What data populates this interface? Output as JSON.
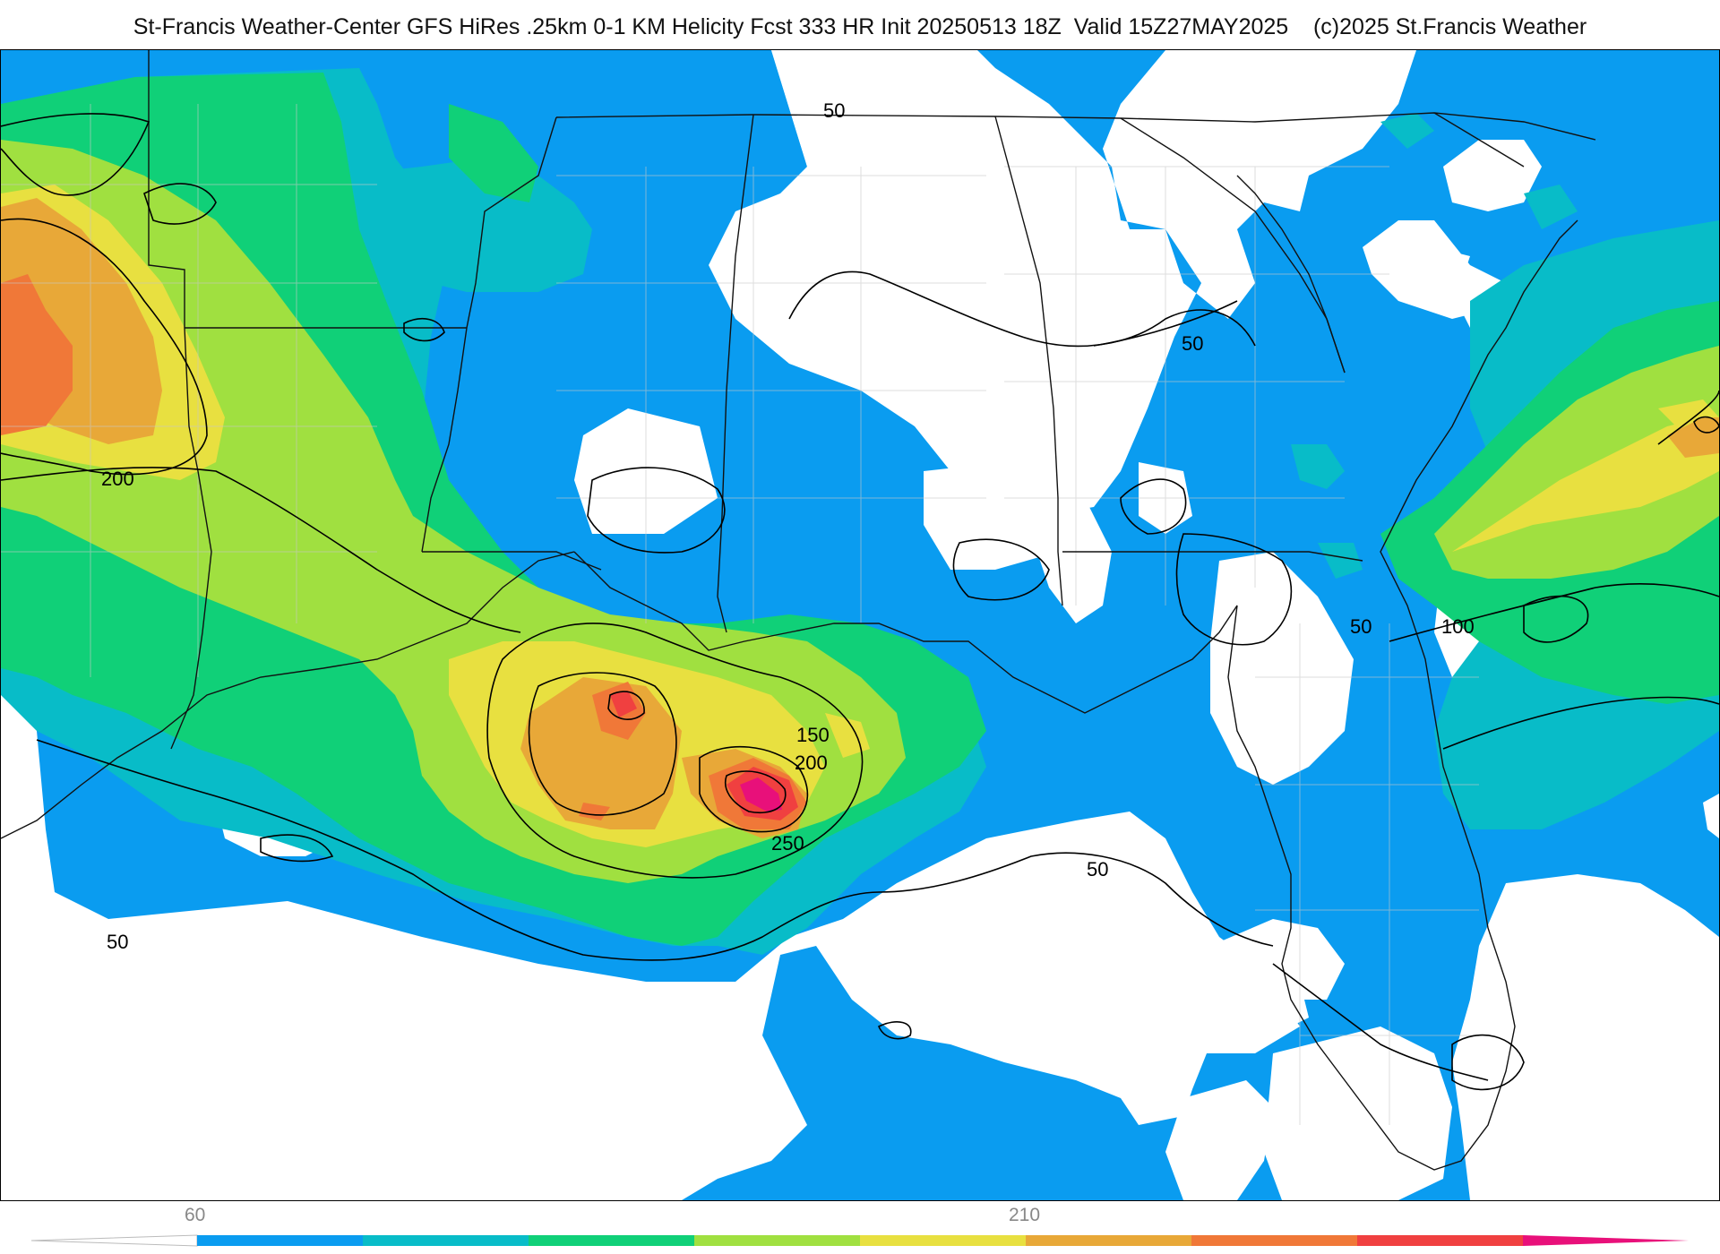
{
  "title": "St-Francis Weather-Center GFS HiRes .25km 0-1 KM Helicity Fcst 333 HR Init 20250513 18Z  Valid 15Z27MAY2025    (c)2025 St.Francis Weather",
  "contour_labels": [
    "50",
    "50",
    "200",
    "50",
    "50",
    "100",
    "150",
    "200",
    "250",
    "50",
    "50"
  ],
  "colorbar": {
    "tick_labels": [
      "60",
      "210"
    ],
    "colors": [
      "#0a9cf0",
      "#08bcc8",
      "#10d078",
      "#a0e040",
      "#e8e040",
      "#e8a838",
      "#f07838",
      "#f04040",
      "#e8107a"
    ]
  },
  "fill_colors": {
    "blue": "#0a9cf0",
    "teal": "#08bcc8",
    "green": "#10d078",
    "lime": "#a0e040",
    "yellow": "#e8e040",
    "orange_light": "#e8a838",
    "orange": "#f07838",
    "red": "#f04040",
    "magenta": "#e8107a"
  }
}
